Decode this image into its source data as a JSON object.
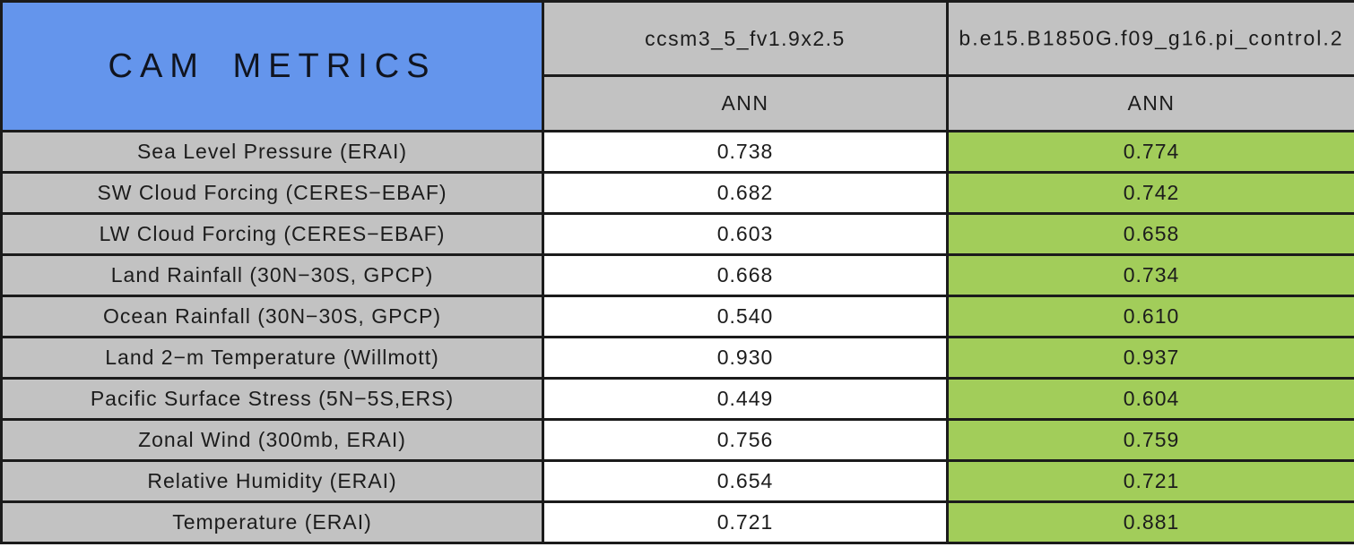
{
  "title": "CAM METRICS",
  "columns": [
    {
      "model": "ccsm3_5_fv1.9x2.5",
      "season": "ANN"
    },
    {
      "model": "b.e15.B1850G.f09_g16.pi_control.2",
      "season": "ANN"
    }
  ],
  "rows": [
    {
      "label": "Sea Level Pressure (ERAI)",
      "values": [
        "0.738",
        "0.774"
      ]
    },
    {
      "label": "SW Cloud Forcing (CERES−EBAF)",
      "values": [
        "0.682",
        "0.742"
      ]
    },
    {
      "label": "LW Cloud Forcing (CERES−EBAF)",
      "values": [
        "0.603",
        "0.658"
      ]
    },
    {
      "label": "Land Rainfall (30N−30S, GPCP)",
      "values": [
        "0.668",
        "0.734"
      ]
    },
    {
      "label": "Ocean Rainfall (30N−30S, GPCP)",
      "values": [
        "0.540",
        "0.610"
      ]
    },
    {
      "label": "Land 2−m Temperature (Willmott)",
      "values": [
        "0.930",
        "0.937"
      ]
    },
    {
      "label": "Pacific Surface Stress (5N−5S,ERS)",
      "values": [
        "0.449",
        "0.604"
      ]
    },
    {
      "label": "Zonal Wind (300mb, ERAI)",
      "values": [
        "0.756",
        "0.759"
      ]
    },
    {
      "label": "Relative Humidity (ERAI)",
      "values": [
        "0.654",
        "0.721"
      ]
    },
    {
      "label": "Temperature (ERAI)",
      "values": [
        "0.721",
        "0.881"
      ]
    }
  ],
  "colors": {
    "title_bg": "#6495EC",
    "header_bg": "#C2C2C2",
    "value_green_bg": "#A2CD5A",
    "border": "#1B1B1B",
    "text": "#1C1C1C"
  },
  "chart_data": {
    "type": "table",
    "title": "CAM METRICS",
    "columns": [
      "ccsm3_5_fv1.9x2.5 (ANN)",
      "b.e15.B1850G.f09_g16.pi_control.2 (ANN)"
    ],
    "metrics": [
      "Sea Level Pressure (ERAI)",
      "SW Cloud Forcing (CERES−EBAF)",
      "LW Cloud Forcing (CERES−EBAF)",
      "Land Rainfall (30N−30S, GPCP)",
      "Ocean Rainfall (30N−30S, GPCP)",
      "Land 2−m Temperature (Willmott)",
      "Pacific Surface Stress (5N−5S,ERS)",
      "Zonal Wind (300mb, ERAI)",
      "Relative Humidity (ERAI)",
      "Temperature (ERAI)"
    ],
    "values": [
      [
        0.738,
        0.774
      ],
      [
        0.682,
        0.742
      ],
      [
        0.603,
        0.658
      ],
      [
        0.668,
        0.734
      ],
      [
        0.54,
        0.61
      ],
      [
        0.93,
        0.937
      ],
      [
        0.449,
        0.604
      ],
      [
        0.756,
        0.759
      ],
      [
        0.654,
        0.721
      ],
      [
        0.721,
        0.881
      ]
    ],
    "layout_hints": {
      "first_column_bg": "gray",
      "second_value_column_bg": "green",
      "title_cell_bg": "blue",
      "second_model_header_overflows_cell": true
    }
  }
}
